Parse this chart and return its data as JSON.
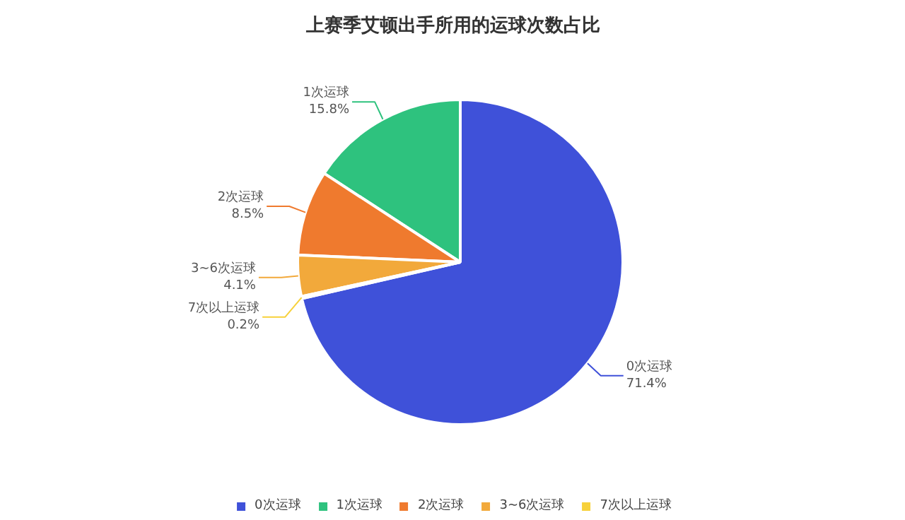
{
  "chart_data": {
    "type": "pie",
    "title": "上赛季艾顿出手所用的运球次数占比",
    "categories": [
      "0次运球",
      "1次运球",
      "2次运球",
      "3~6次运球",
      "7次以上运球"
    ],
    "values": [
      71.4,
      15.8,
      8.5,
      4.1,
      0.2
    ],
    "value_labels": [
      "71.4%",
      "15.8%",
      "8.5%",
      "4.1%",
      "0.2%"
    ],
    "colors": [
      "#3f51d9",
      "#2ec27e",
      "#ef7a2e",
      "#f2a93b",
      "#f7d13a"
    ],
    "legend": "bottom"
  }
}
